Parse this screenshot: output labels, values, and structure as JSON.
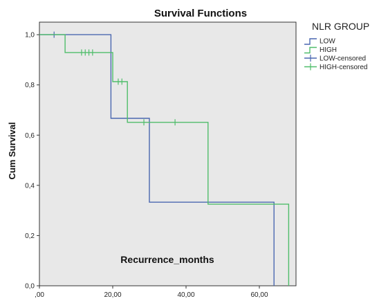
{
  "chart_data": {
    "type": "line",
    "step": true,
    "title": "Survival Functions",
    "xlabel": "Recurrence_months",
    "ylabel": "Cum Survival",
    "xlim": [
      0,
      70
    ],
    "ylim": [
      0,
      1.05
    ],
    "x_ticks": [
      ",00",
      "20,00",
      "40,00",
      "60,00"
    ],
    "x_tick_values": [
      0,
      20,
      40,
      60
    ],
    "y_ticks": [
      "0,0",
      "0,2",
      "0,4",
      "0,6",
      "0,8",
      "1,0"
    ],
    "y_tick_values": [
      0,
      0.2,
      0.4,
      0.6,
      0.8,
      1.0
    ],
    "grid": false,
    "background": "#e8e8e8",
    "legend": {
      "title": "NLR GROUP",
      "placement": "right",
      "items": [
        "LOW",
        "HIGH",
        "LOW-censored",
        "HIGH-censored"
      ]
    },
    "series": [
      {
        "name": "LOW",
        "color": "#4a67b0",
        "points": [
          [
            0,
            1.0
          ],
          [
            19.5,
            1.0
          ],
          [
            19.5,
            0.667
          ],
          [
            30,
            0.667
          ],
          [
            30,
            0.333
          ],
          [
            64,
            0.333
          ],
          [
            64,
            0.0
          ]
        ],
        "censored": [
          [
            4,
            1.0
          ]
        ]
      },
      {
        "name": "HIGH",
        "color": "#4fbd6a",
        "points": [
          [
            0,
            1.0
          ],
          [
            7,
            1.0
          ],
          [
            7,
            0.929
          ],
          [
            20,
            0.929
          ],
          [
            20,
            0.813
          ],
          [
            24,
            0.813
          ],
          [
            24,
            0.651
          ],
          [
            46,
            0.651
          ],
          [
            46,
            0.325
          ],
          [
            68,
            0.325
          ],
          [
            68,
            0.0
          ]
        ],
        "censored": [
          [
            11.5,
            0.929
          ],
          [
            12.5,
            0.929
          ],
          [
            13.5,
            0.929
          ],
          [
            14.5,
            0.929
          ],
          [
            21.5,
            0.813
          ],
          [
            22.5,
            0.813
          ],
          [
            28.5,
            0.651
          ],
          [
            37,
            0.651
          ]
        ]
      }
    ]
  }
}
